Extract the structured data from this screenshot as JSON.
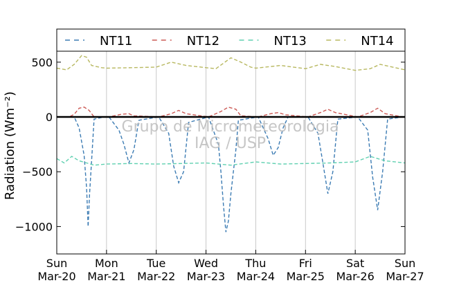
{
  "chart_data": {
    "type": "line",
    "ylabel": "Radiation (Wm⁻²)",
    "ylim": [
      -1250,
      600
    ],
    "xlim": [
      0,
      7
    ],
    "yticks": [
      500,
      0,
      -500,
      -1000
    ],
    "ytick_labels": [
      "500",
      "0",
      "−500",
      "−1000"
    ],
    "xticks": [
      {
        "day": "Sun",
        "date": "Mar-20"
      },
      {
        "day": "Mon",
        "date": "Mar-21"
      },
      {
        "day": "Tue",
        "date": "Mar-22"
      },
      {
        "day": "Wed",
        "date": "Mar-23"
      },
      {
        "day": "Thu",
        "date": "Mar-24"
      },
      {
        "day": "Fri",
        "date": "Mar-25"
      },
      {
        "day": "Sat",
        "date": "Mar-26"
      },
      {
        "day": "Sun",
        "date": "Mar-27"
      }
    ],
    "grid": "vertical",
    "legend_position": "top",
    "watermark": [
      "Grupo de Micrometeorologia",
      "IAG / USP"
    ],
    "zero_line": 0,
    "series": [
      {
        "name": "NT11",
        "color": "#3b7bb3",
        "style": "dashed",
        "x": [
          0.05,
          0.15,
          0.25,
          0.35,
          0.45,
          0.55,
          0.6,
          0.63,
          0.66,
          0.7,
          0.75,
          0.95,
          1.05,
          1.25,
          1.35,
          1.45,
          1.55,
          1.65,
          2.05,
          2.25,
          2.35,
          2.45,
          2.55,
          2.65,
          3.05,
          3.25,
          3.3,
          3.35,
          3.4,
          3.45,
          3.5,
          3.55,
          3.6,
          3.65,
          4.05,
          4.25,
          4.35,
          4.45,
          4.55,
          4.65,
          5.05,
          5.25,
          5.35,
          5.45,
          5.55,
          5.65,
          6.05,
          6.25,
          6.35,
          6.45,
          6.55,
          6.65,
          6.95
        ],
        "y": [
          0,
          0,
          0,
          0,
          -100,
          -350,
          -650,
          -1000,
          -700,
          -400,
          -20,
          0,
          0,
          -120,
          -250,
          -420,
          -300,
          -30,
          0,
          -150,
          -450,
          -600,
          -500,
          -50,
          0,
          -250,
          -500,
          -800,
          -1050,
          -950,
          -700,
          -500,
          -300,
          -30,
          0,
          -200,
          -350,
          -280,
          -100,
          0,
          0,
          -150,
          -420,
          -700,
          -500,
          -20,
          0,
          -120,
          -550,
          -850,
          -500,
          -20,
          0
        ]
      },
      {
        "name": "NT12",
        "color": "#cc5a55",
        "style": "dashed",
        "x": [
          0.05,
          0.25,
          0.35,
          0.45,
          0.55,
          0.65,
          0.75,
          1.05,
          1.3,
          1.45,
          1.55,
          2.05,
          2.3,
          2.45,
          2.6,
          3.05,
          3.3,
          3.45,
          3.6,
          3.7,
          4.05,
          4.3,
          4.45,
          4.6,
          5.05,
          5.3,
          5.45,
          5.6,
          6.05,
          6.3,
          6.45,
          6.6,
          6.95
        ],
        "y": [
          0,
          0,
          25,
          80,
          90,
          60,
          0,
          0,
          25,
          30,
          10,
          0,
          30,
          60,
          30,
          0,
          50,
          90,
          70,
          10,
          0,
          30,
          40,
          20,
          0,
          40,
          70,
          40,
          0,
          40,
          80,
          30,
          0
        ]
      },
      {
        "name": "NT13",
        "color": "#5fd0b0",
        "style": "dashed",
        "x": [
          0.0,
          0.15,
          0.3,
          0.45,
          0.6,
          0.75,
          1.0,
          1.5,
          2.0,
          2.5,
          3.0,
          3.5,
          4.0,
          4.5,
          5.0,
          5.5,
          6.0,
          6.3,
          6.6,
          7.0
        ],
        "y": [
          -380,
          -420,
          -360,
          -400,
          -420,
          -440,
          -430,
          -425,
          -430,
          -425,
          -420,
          -440,
          -410,
          -430,
          -425,
          -420,
          -410,
          -360,
          -400,
          -420
        ]
      },
      {
        "name": "NT14",
        "color": "#b8b860",
        "style": "dashed",
        "x": [
          0.0,
          0.2,
          0.35,
          0.5,
          0.6,
          0.7,
          0.9,
          1.0,
          1.5,
          2.0,
          2.3,
          2.6,
          3.0,
          3.2,
          3.5,
          3.7,
          3.9,
          4.0,
          4.5,
          5.0,
          5.3,
          5.6,
          6.0,
          6.3,
          6.5,
          6.7,
          7.0
        ],
        "y": [
          445,
          430,
          480,
          560,
          545,
          470,
          450,
          445,
          450,
          455,
          500,
          470,
          450,
          440,
          540,
          500,
          455,
          445,
          470,
          440,
          480,
          460,
          425,
          440,
          480,
          460,
          430
        ]
      }
    ]
  }
}
